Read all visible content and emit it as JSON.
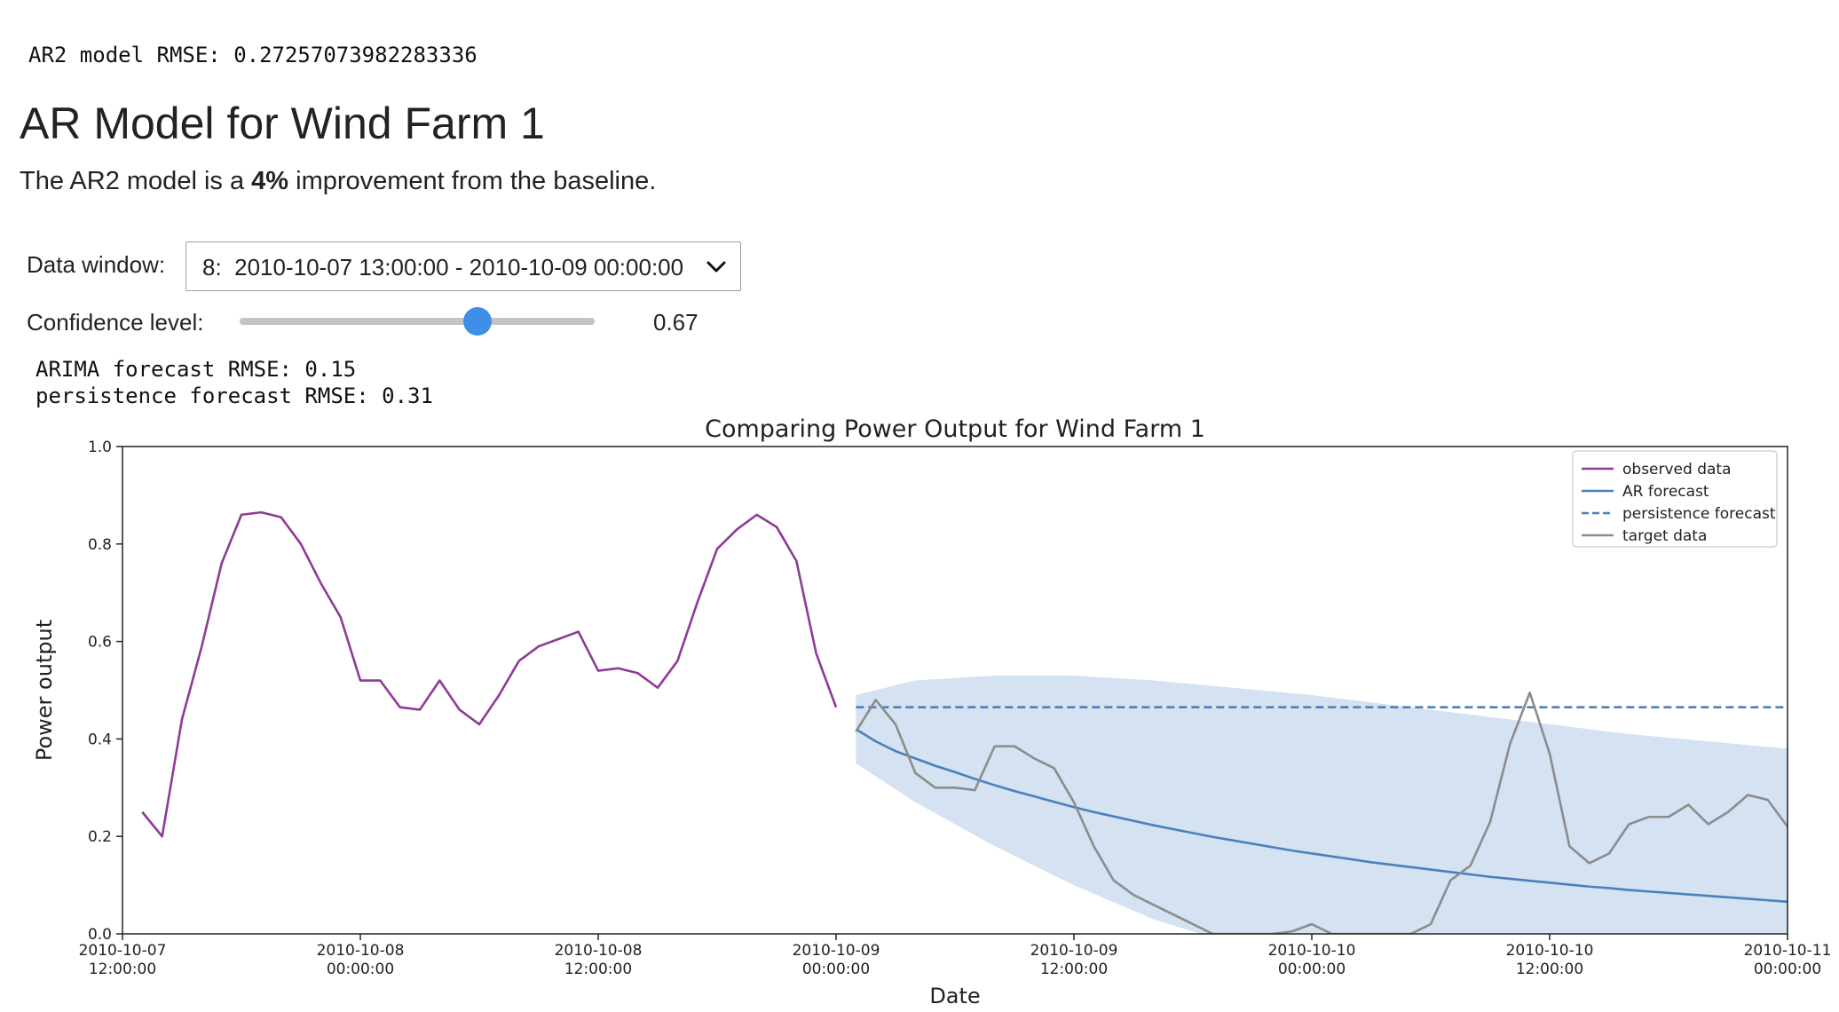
{
  "header": {
    "ar2_rmse_text": "AR2 model RMSE: 0.27257073982283336"
  },
  "title": "AR Model for Wind Farm 1",
  "summary": {
    "prefix": "The AR2 model is a ",
    "improvement": "4%",
    "suffix": " improvement from the baseline."
  },
  "controls": {
    "data_window_label": "Data window:",
    "data_window_value": "8:  2010-10-07 13:00:00 - 2010-10-09 00:00:00",
    "confidence_label": "Confidence level:",
    "confidence_value": 0.67,
    "confidence_value_text": "0.67"
  },
  "metrics": {
    "arima_text": "ARIMA forecast RMSE: 0.15",
    "persistence_text": "persistence forecast RMSE: 0.31"
  },
  "colors": {
    "observed": "#8e3a96",
    "ar_forecast": "#4a80bd",
    "persistence": "#4a80bd",
    "target": "#8c8c8c",
    "confidence_band": "#d4e2f1",
    "slider_thumb": "#3d8fe8"
  },
  "chart_data": {
    "type": "line",
    "title": "Comparing Power Output for Wind Farm 1",
    "xlabel": "Date",
    "ylabel": "Power output",
    "xlim": [
      0,
      84
    ],
    "ylim": [
      0,
      1.0
    ],
    "yticks": [
      0.0,
      0.2,
      0.4,
      0.6,
      0.8,
      1.0
    ],
    "ytick_labels": [
      "0.0",
      "0.2",
      "0.4",
      "0.6",
      "0.8",
      "1.0"
    ],
    "xticks": [
      0,
      12,
      24,
      36,
      48,
      60,
      72,
      84
    ],
    "xtick_labels": [
      [
        "2010-10-07",
        "12:00:00"
      ],
      [
        "2010-10-08",
        "00:00:00"
      ],
      [
        "2010-10-08",
        "12:00:00"
      ],
      [
        "2010-10-09",
        "00:00:00"
      ],
      [
        "2010-10-09",
        "12:00:00"
      ],
      [
        "2010-10-10",
        "00:00:00"
      ],
      [
        "2010-10-10",
        "12:00:00"
      ],
      [
        "2010-10-11",
        "00:00:00"
      ]
    ],
    "legend_position": "top-right",
    "grid": false,
    "series": [
      {
        "name": "observed data",
        "style": "solid",
        "x": [
          1,
          2,
          3,
          4,
          5,
          6,
          7,
          8,
          9,
          10,
          11,
          12,
          13,
          14,
          15,
          16,
          17,
          18,
          19,
          20,
          21,
          22,
          23,
          24,
          25,
          26,
          27,
          28,
          29,
          30,
          31,
          32,
          33,
          34,
          35,
          36
        ],
        "y": [
          0.25,
          0.2,
          0.44,
          0.59,
          0.76,
          0.86,
          0.865,
          0.855,
          0.8,
          0.72,
          0.65,
          0.52,
          0.52,
          0.465,
          0.46,
          0.52,
          0.46,
          0.43,
          0.49,
          0.56,
          0.59,
          0.605,
          0.62,
          0.54,
          0.545,
          0.535,
          0.505,
          0.56,
          0.68,
          0.79,
          0.83,
          0.86,
          0.835,
          0.765,
          0.575,
          0.465
        ]
      },
      {
        "name": "AR forecast",
        "style": "solid",
        "x": [
          37,
          38,
          39,
          40,
          41,
          42,
          43,
          44,
          45,
          46,
          47,
          48,
          49,
          50,
          51,
          52,
          53,
          54,
          55,
          56,
          57,
          58,
          59,
          60,
          61,
          62,
          63,
          64,
          65,
          66,
          67,
          68,
          69,
          70,
          71,
          72,
          73,
          74,
          75,
          76,
          77,
          78,
          79,
          80,
          81,
          82,
          83,
          84
        ],
        "y": [
          0.42,
          0.395,
          0.375,
          0.36,
          0.345,
          0.332,
          0.318,
          0.305,
          0.293,
          0.282,
          0.271,
          0.26,
          0.25,
          0.241,
          0.232,
          0.223,
          0.215,
          0.207,
          0.199,
          0.192,
          0.185,
          0.178,
          0.171,
          0.165,
          0.159,
          0.153,
          0.147,
          0.142,
          0.137,
          0.132,
          0.127,
          0.122,
          0.117,
          0.113,
          0.109,
          0.105,
          0.101,
          0.097,
          0.094,
          0.09,
          0.087,
          0.084,
          0.081,
          0.078,
          0.075,
          0.072,
          0.069,
          0.066
        ]
      },
      {
        "name": "persistence forecast",
        "style": "dashed",
        "x": [
          37,
          84
        ],
        "y": [
          0.465,
          0.465
        ]
      },
      {
        "name": "target data",
        "style": "solid",
        "x": [
          37,
          38,
          39,
          40,
          41,
          42,
          43,
          44,
          45,
          46,
          47,
          48,
          49,
          50,
          51,
          52,
          53,
          54,
          55,
          56,
          57,
          58,
          59,
          60,
          61,
          62,
          63,
          64,
          65,
          66,
          67,
          68,
          69,
          70,
          71,
          72,
          73,
          74,
          75,
          76,
          77,
          78,
          79,
          80,
          81,
          82,
          83,
          84
        ],
        "y": [
          0.415,
          0.48,
          0.43,
          0.33,
          0.3,
          0.3,
          0.295,
          0.385,
          0.385,
          0.36,
          0.34,
          0.27,
          0.18,
          0.11,
          0.08,
          0.06,
          0.04,
          0.02,
          0.0,
          0.0,
          0.0,
          0.0,
          0.005,
          0.02,
          0.0,
          0.0,
          0.0,
          0.0,
          0.0,
          0.02,
          0.11,
          0.14,
          0.23,
          0.39,
          0.495,
          0.37,
          0.18,
          0.145,
          0.165,
          0.225,
          0.24,
          0.24,
          0.265,
          0.225,
          0.25,
          0.285,
          0.275,
          0.22
        ]
      }
    ],
    "confidence_band": {
      "x": [
        37,
        40,
        44,
        48,
        52,
        56,
        60,
        64,
        68,
        72,
        76,
        80,
        84
      ],
      "upper": [
        0.49,
        0.52,
        0.53,
        0.53,
        0.52,
        0.505,
        0.49,
        0.47,
        0.45,
        0.43,
        0.41,
        0.395,
        0.38
      ],
      "lower": [
        0.35,
        0.27,
        0.18,
        0.1,
        0.03,
        -0.02,
        -0.06,
        -0.09,
        -0.11,
        -0.13,
        -0.14,
        -0.15,
        -0.16
      ]
    }
  }
}
